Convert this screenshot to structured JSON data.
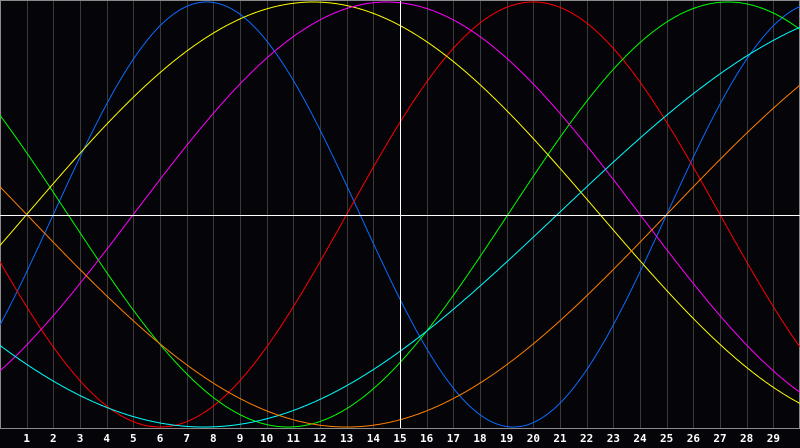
{
  "chart_data": {
    "type": "line",
    "title": "",
    "xlabel": "",
    "ylabel": "",
    "x_ticks": [
      "1",
      "2",
      "3",
      "4",
      "5",
      "6",
      "7",
      "8",
      "9",
      "10",
      "11",
      "12",
      "13",
      "14",
      "15",
      "16",
      "17",
      "18",
      "19",
      "20",
      "21",
      "22",
      "23",
      "24",
      "25",
      "26",
      "27",
      "28",
      "29"
    ],
    "xlim": [
      0,
      30
    ],
    "ylim": [
      -1,
      1
    ],
    "grid": true,
    "marker_day": 15,
    "baseline": 0,
    "series": [
      {
        "color": "#0a6cff",
        "period_days": 23,
        "zero_up_day": 2.0
      },
      {
        "color": "#ff0000",
        "period_days": 28,
        "zero_up_day": 13.0
      },
      {
        "color": "#00ff00",
        "period_days": 33,
        "zero_up_day": 19.05
      },
      {
        "color": "#ffff00",
        "period_days": 43,
        "zero_up_day": 1.0
      },
      {
        "color": "#ff00ff",
        "period_days": 38,
        "zero_up_day": 5.0
      },
      {
        "color": "#00ffff",
        "period_days": 53,
        "zero_up_day": 20.9
      },
      {
        "color": "#ff8000",
        "period_days": 48,
        "zero_up_day": 25.0
      }
    ],
    "colors": {
      "background": "#050408",
      "grid": "#3a3a3a",
      "axis": "#ffffff",
      "frame": "#8a8a8a"
    }
  }
}
